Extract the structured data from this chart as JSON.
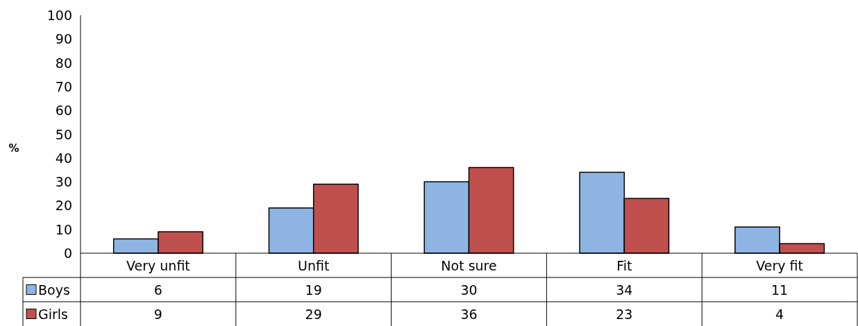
{
  "chart_data": {
    "type": "bar",
    "ylabel": "%",
    "categories": [
      "Very unfit",
      "Unfit",
      "Not sure",
      "Fit",
      "Very fit"
    ],
    "series": [
      {
        "name": "Boys",
        "color": "#8eb4e3",
        "values": [
          6,
          19,
          30,
          34,
          11
        ]
      },
      {
        "name": "Girls",
        "color": "#c0504d",
        "values": [
          9,
          29,
          36,
          23,
          4
        ]
      }
    ],
    "ylim": [
      0,
      100
    ],
    "yticks": [
      0,
      10,
      20,
      30,
      40,
      50,
      60,
      70,
      80,
      90,
      100
    ],
    "data_labels": true,
    "legend": "bottom"
  }
}
